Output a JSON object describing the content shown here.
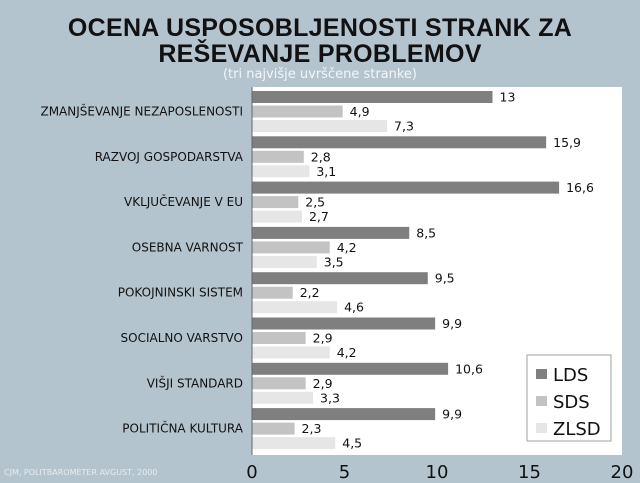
{
  "title_line1": "OCENA USPOSOBLJENOSTI STRANK ZA",
  "title_line2": "REŠEVANJE PROBLEMOV",
  "subtitle": "(tri najvišje uvrščene stranke)",
  "source": "CJM, POLITBAROMETER AVGUST, 2000",
  "colors": {
    "background": "#b4c4ce",
    "LDS": "#7f7f7f",
    "SDS": "#c3c3c3",
    "ZLSD": "#e6e6e6",
    "plot_bg": "#ffffff"
  },
  "chart_data": {
    "type": "bar",
    "orientation": "horizontal",
    "categories": [
      "ZMANJŠEVANJE NEZAPOSLENOSTI",
      "RAZVOJ GOSPODARSTVA",
      "VKLJUČEVANJE V EU",
      "OSEBNA VARNOST",
      "POKOJNINSKI SISTEM",
      "SOCIALNO VARSTVO",
      "VIŠJI STANDARD",
      "POLITIČNA KULTURA"
    ],
    "series": [
      {
        "name": "LDS",
        "values": [
          13,
          15.9,
          16.6,
          8.5,
          9.5,
          9.9,
          10.6,
          9.9
        ]
      },
      {
        "name": "SDS",
        "values": [
          4.9,
          2.8,
          2.5,
          4.2,
          2.2,
          2.9,
          2.9,
          2.3
        ]
      },
      {
        "name": "ZLSD",
        "values": [
          7.3,
          3.1,
          2.7,
          3.5,
          4.6,
          4.2,
          3.3,
          4.5
        ]
      }
    ],
    "value_labels": [
      [
        "13",
        "15,9",
        "16,6",
        "8,5",
        "9,5",
        "9,9",
        "10,6",
        "9,9"
      ],
      [
        "4,9",
        "2,8",
        "2,5",
        "4,2",
        "2,2",
        "2,9",
        "2,9",
        "2,3"
      ],
      [
        "7,3",
        "3,1",
        "2,7",
        "3,5",
        "4,6",
        "4,2",
        "3,3",
        "4,5"
      ]
    ],
    "xlim": [
      0,
      20
    ],
    "xticks": [
      "0",
      "5",
      "10",
      "15",
      "20"
    ],
    "grid": false,
    "legend": "bottom-right"
  }
}
